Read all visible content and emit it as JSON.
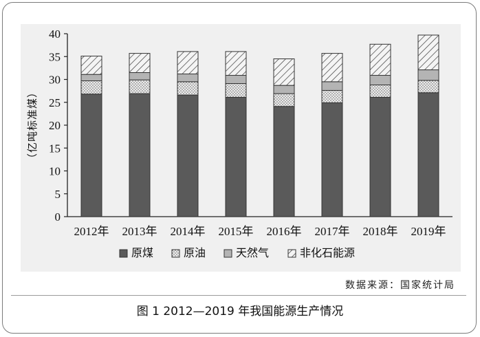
{
  "figure": {
    "caption": "图 1  2012—2019 年我国能源生产情况",
    "source": "数据来源：国家统计局"
  },
  "chart_data": {
    "type": "bar",
    "stacked": true,
    "categories": [
      "2012年",
      "2013年",
      "2014年",
      "2015年",
      "2016年",
      "2017年",
      "2018年",
      "2019年"
    ],
    "ylabel": "（亿吨标准煤）",
    "xlabel": "",
    "ylim": [
      0,
      40
    ],
    "yticks": [
      "0",
      "5",
      "10",
      "15",
      "20",
      "25",
      "30",
      "35",
      "40"
    ],
    "grid": false,
    "legend_position": "bottom",
    "series": [
      {
        "name": "原煤",
        "values": [
          26.8,
          26.9,
          26.6,
          26.1,
          24.1,
          24.9,
          26.1,
          27.1
        ],
        "color": "#5a5a5a",
        "pattern": "solid"
      },
      {
        "name": "原油",
        "values": [
          2.9,
          3.0,
          2.9,
          3.0,
          2.8,
          2.7,
          2.7,
          2.7
        ],
        "color": "#e8e8e8",
        "pattern": "dots"
      },
      {
        "name": "天然气",
        "values": [
          1.4,
          1.6,
          1.7,
          1.8,
          1.8,
          1.9,
          2.1,
          2.3
        ],
        "color": "#b4b4b4",
        "pattern": "solid"
      },
      {
        "name": "非化石能源",
        "values": [
          4.0,
          4.2,
          4.9,
          5.2,
          5.8,
          6.2,
          6.8,
          7.6
        ],
        "color": "#f4f4f4",
        "pattern": "hatch"
      }
    ]
  }
}
